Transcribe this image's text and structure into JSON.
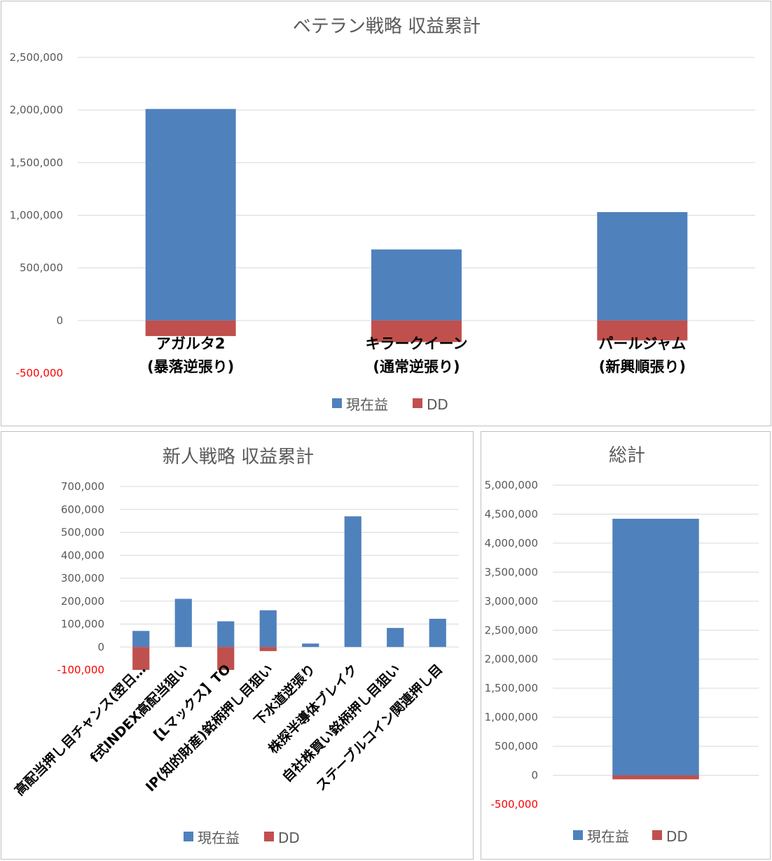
{
  "colors": {
    "current": "#4f81bd",
    "dd": "#c0504d",
    "negative_tick": "#ff0000"
  },
  "legend": {
    "current_label": "現在益",
    "dd_label": "DD"
  },
  "chart_data": [
    {
      "type": "bar",
      "title": "ベテラン戦略 収益累計",
      "categories": [
        [
          "アガルタ2",
          "(暴落逆張り)"
        ],
        [
          "キラークイーン",
          "(通常逆張り)"
        ],
        [
          "パールジャム",
          "(新興順張り)"
        ]
      ],
      "series": [
        {
          "name": "現在益",
          "values": [
            2010000,
            675000,
            1030000
          ]
        },
        {
          "name": "DD",
          "values": [
            -148000,
            -205000,
            -190000
          ]
        }
      ],
      "ylim": [
        -500000,
        2500000
      ],
      "yticks": [
        "2,500,000",
        "2,000,000",
        "1,500,000",
        "1,000,000",
        "500,000",
        "0",
        "-500,000"
      ],
      "grid": true,
      "legend": "bottom"
    },
    {
      "type": "bar",
      "title": "新人戦略 収益累計",
      "categories": [
        "高配当押し目チャンス(翌日…",
        "f式INDEX高配当狙い",
        "【Lマックス】TO",
        "IP(知的財産)銘柄押し目狙い",
        "下水道逆張り",
        "株探半導体ブレイク",
        "自社株買い銘柄押し目狙い",
        "ステーブルコイン関連押し目"
      ],
      "series": [
        {
          "name": "現在益",
          "values": [
            70000,
            210000,
            112000,
            160000,
            15000,
            570000,
            83000,
            123000
          ]
        },
        {
          "name": "DD",
          "values": [
            -100000,
            0,
            -100000,
            -18000,
            0,
            0,
            0,
            0
          ]
        }
      ],
      "ylim": [
        -100000,
        700000
      ],
      "yticks": [
        "700,000",
        "600,000",
        "500,000",
        "400,000",
        "300,000",
        "200,000",
        "100,000",
        "0",
        "-100,000"
      ],
      "grid": true,
      "legend": "bottom"
    },
    {
      "type": "bar",
      "title": "総計",
      "categories": [
        ""
      ],
      "series": [
        {
          "name": "現在益",
          "values": [
            4420000
          ]
        },
        {
          "name": "DD",
          "values": [
            -70000
          ]
        }
      ],
      "ylim": [
        -500000,
        5000000
      ],
      "yticks": [
        "5,000,000",
        "4,500,000",
        "4,000,000",
        "3,500,000",
        "3,000,000",
        "2,500,000",
        "2,000,000",
        "1,500,000",
        "1,000,000",
        "500,000",
        "0",
        "-500,000"
      ],
      "grid": true,
      "legend": "bottom"
    }
  ]
}
